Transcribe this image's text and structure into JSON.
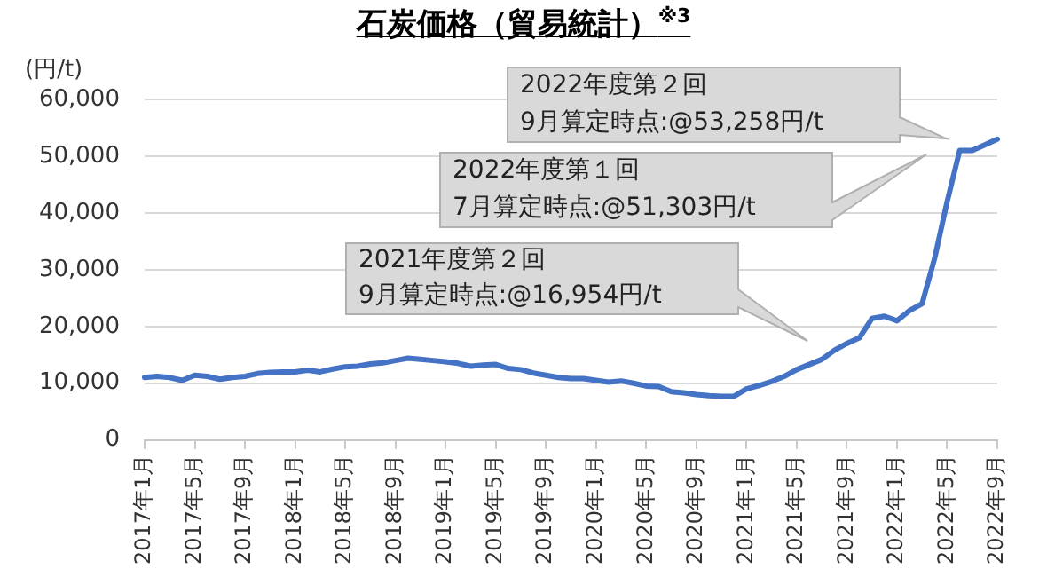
{
  "chart_data": {
    "type": "line",
    "title": "石炭価格（貿易統計）$^{※3}$",
    "ylabel": "(円/t)",
    "categories": [
      "2017年1月",
      null,
      null,
      null,
      "2017年5月",
      null,
      null,
      null,
      "2017年9月",
      null,
      null,
      null,
      "2018年1月",
      null,
      null,
      null,
      "2018年5月",
      null,
      null,
      null,
      "2018年9月",
      null,
      null,
      null,
      "2019年1月",
      null,
      null,
      null,
      "2019年5月",
      null,
      null,
      null,
      "2019年9月",
      null,
      null,
      null,
      "2020年1月",
      null,
      null,
      null,
      "2020年5月",
      null,
      null,
      null,
      "2020年9月",
      null,
      null,
      null,
      "2021年1月",
      null,
      null,
      null,
      "2021年5月",
      null,
      null,
      null,
      "2021年9月",
      null,
      null,
      null,
      "2022年1月",
      null,
      null,
      null,
      "2022年5月",
      null,
      null,
      null,
      "2022年9月"
    ],
    "series": [
      {
        "color": "#4472c4",
        "values": [
          11000,
          11200,
          11000,
          10500,
          11400,
          11200,
          10700,
          11000,
          11200,
          11700,
          11900,
          12000,
          12000,
          12300,
          12000,
          12500,
          12900,
          13000,
          13400,
          13600,
          14000,
          14400,
          14200,
          14000,
          13800,
          13500,
          13000,
          13200,
          13300,
          12600,
          12400,
          11800,
          11400,
          11000,
          10800,
          10800,
          10500,
          10200,
          10400,
          10000,
          9500,
          9400,
          8500,
          8300,
          8000,
          7800,
          7700,
          7700,
          9000,
          9600,
          10300,
          11200,
          12400,
          13300,
          14200,
          15800,
          17000,
          18000,
          21400,
          21800,
          21000,
          22800,
          24000,
          32000,
          42000,
          51000,
          51000,
          52000,
          53000
        ]
      }
    ],
    "ylim": [
      0,
      60000
    ],
    "yticks": [
      {
        "value": 0,
        "label": "0"
      },
      {
        "value": 10000,
        "label": "10,000"
      },
      {
        "value": 20000,
        "label": "20,000"
      },
      {
        "value": 30000,
        "label": "30,000"
      },
      {
        "value": 40000,
        "label": "40,000"
      },
      {
        "value": 50000,
        "label": "50,000"
      },
      {
        "value": 60000,
        "label": "60,000"
      }
    ],
    "grid": "y",
    "legend": false,
    "marker": "none",
    "line_style": "solid",
    "annotations": [
      "2021年度第２回\n9月算定時点:@16,954円/t",
      "2022年度第１回\n7月算定時点:@51,303円/t",
      "2022年度第２回\n9月算定時点:@53,258円/t"
    ]
  }
}
